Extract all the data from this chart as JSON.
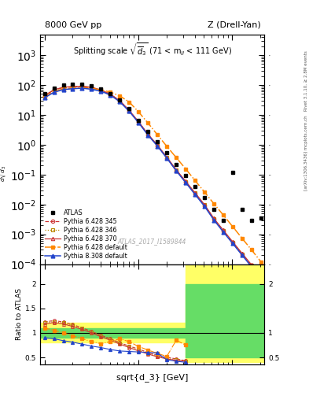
{
  "title_left": "8000 GeV pp",
  "title_right": "Z (Drell-Yan)",
  "plot_title": "Splitting scale $\\sqrt{\\overline{d}_3}$ (71 < m$_{ll}$ < 111 GeV)",
  "xlabel": "sqrt{d_3} [GeV]",
  "ylabel_main": "d$\\sigma$/dsqrt($\\overline{d_3}$) [pb,GeV$^{-1}$]",
  "ylabel_ratio": "Ratio to ATLAS",
  "watermark": "ATLAS_2017_I1589844",
  "right_label1": "Rivet 3.1.10, ≥ 2.8M events",
  "right_label2": "[arXiv:1306.3436]",
  "right_label3": "mcplots.cern.ch",
  "atlas_x": [
    1.0,
    1.26,
    1.59,
    2.0,
    2.52,
    3.17,
    4.0,
    5.04,
    6.35,
    8.0,
    10.08,
    12.7,
    16.0,
    20.16,
    25.4,
    32.0,
    40.32,
    50.79,
    64.0,
    80.64,
    101.59,
    128.0,
    161.28,
    203.19
  ],
  "atlas_y": [
    50,
    80,
    100,
    105,
    105,
    95,
    75,
    52,
    32,
    16,
    6.5,
    2.7,
    1.3,
    0.55,
    0.22,
    0.095,
    0.04,
    0.017,
    0.007,
    0.003,
    0.12,
    0.007,
    0.003,
    0.0035
  ],
  "py6_345_x": [
    1.0,
    1.26,
    1.59,
    2.0,
    2.52,
    3.17,
    4.0,
    5.04,
    6.35,
    8.0,
    10.08,
    12.7,
    16.0,
    20.16,
    25.4,
    32.0,
    40.32,
    50.79,
    64.0,
    80.64,
    101.59,
    128.0,
    161.28,
    203.19
  ],
  "py6_345_y": [
    43,
    68,
    82,
    87,
    89,
    82,
    66,
    48,
    29,
    13.5,
    5.6,
    2.15,
    0.92,
    0.36,
    0.135,
    0.056,
    0.023,
    0.0093,
    0.0032,
    0.0013,
    0.00052,
    0.00021,
    8.7e-05,
    3.4e-05
  ],
  "py6_346_x": [
    1.0,
    1.26,
    1.59,
    2.0,
    2.52,
    3.17,
    4.0,
    5.04,
    6.35,
    8.0,
    10.08,
    12.7,
    16.0,
    20.16,
    25.4,
    32.0,
    40.32,
    50.79,
    64.0,
    80.64,
    101.59,
    128.0,
    161.28,
    203.19
  ],
  "py6_346_y": [
    43,
    68,
    83,
    88,
    90,
    83,
    67,
    49,
    29.5,
    14,
    5.8,
    2.2,
    0.95,
    0.375,
    0.14,
    0.058,
    0.024,
    0.0097,
    0.0033,
    0.00133,
    0.00054,
    0.00022,
    9e-05,
    3.6e-05
  ],
  "py6_370_x": [
    1.0,
    1.26,
    1.59,
    2.0,
    2.52,
    3.17,
    4.0,
    5.04,
    6.35,
    8.0,
    10.08,
    12.7,
    16.0,
    20.16,
    25.4,
    32.0,
    40.32,
    50.79,
    64.0,
    80.64,
    101.59,
    128.0,
    161.28,
    203.19
  ],
  "py6_370_y": [
    44,
    69,
    84,
    89,
    91,
    84,
    68,
    49.5,
    30,
    14.2,
    5.9,
    2.27,
    0.97,
    0.385,
    0.145,
    0.06,
    0.0245,
    0.0099,
    0.0034,
    0.00137,
    0.00056,
    0.00023,
    9.5e-05,
    3.8e-05
  ],
  "py6_def_x": [
    1.0,
    1.26,
    1.59,
    2.0,
    2.52,
    3.17,
    4.0,
    5.04,
    6.35,
    8.0,
    10.08,
    12.7,
    16.0,
    20.16,
    25.4,
    32.0,
    40.32,
    50.79,
    64.0,
    80.64,
    101.59,
    128.0,
    161.28,
    203.19
  ],
  "py6_def_y": [
    40,
    60,
    74,
    79,
    82,
    77,
    68,
    58,
    43,
    27,
    12.5,
    5.3,
    2.15,
    0.88,
    0.37,
    0.155,
    0.063,
    0.026,
    0.0106,
    0.0044,
    0.0018,
    0.00073,
    0.0003,
    0.00012
  ],
  "py8_def_x": [
    1.0,
    1.26,
    1.59,
    2.0,
    2.52,
    3.17,
    4.0,
    5.04,
    6.35,
    8.0,
    10.08,
    12.7,
    16.0,
    20.16,
    25.4,
    32.0,
    40.32,
    50.79,
    64.0,
    80.64,
    101.59,
    128.0,
    161.28,
    203.19
  ],
  "py8_def_y": [
    37,
    57,
    70,
    75,
    78,
    72,
    62,
    46,
    27.5,
    13.2,
    5.4,
    2.1,
    0.9,
    0.355,
    0.133,
    0.054,
    0.0215,
    0.0087,
    0.003,
    0.0012,
    0.00049,
    0.0002,
    8.1e-05,
    3.2e-05
  ],
  "ratio_py6_345_x": [
    1.0,
    1.26,
    1.59,
    2.0,
    2.52,
    3.17,
    4.0,
    5.04,
    6.35,
    8.0,
    10.08,
    12.7,
    16.0,
    20.16,
    25.4,
    32.0
  ],
  "ratio_py6_345_y": [
    1.22,
    1.25,
    1.22,
    1.17,
    1.1,
    1.03,
    0.95,
    0.88,
    0.8,
    0.73,
    0.67,
    0.6,
    0.54,
    0.5,
    0.47,
    0.43
  ],
  "ratio_py6_346_x": [
    1.0,
    1.26,
    1.59,
    2.0,
    2.52,
    3.17,
    4.0,
    5.04,
    6.35,
    8.0,
    10.08,
    12.7,
    16.0,
    20.16,
    25.4,
    32.0
  ],
  "ratio_py6_346_y": [
    1.2,
    1.23,
    1.2,
    1.15,
    1.09,
    1.02,
    0.94,
    0.87,
    0.79,
    0.72,
    0.65,
    0.58,
    0.52,
    0.48,
    0.45,
    0.42
  ],
  "ratio_py6_370_x": [
    1.0,
    1.26,
    1.59,
    2.0,
    2.52,
    3.17,
    4.0,
    5.04,
    6.35,
    8.0,
    10.08,
    12.7,
    16.0,
    20.16,
    25.4,
    32.0
  ],
  "ratio_py6_370_y": [
    1.18,
    1.21,
    1.18,
    1.13,
    1.07,
    1.0,
    0.92,
    0.85,
    0.77,
    0.7,
    0.63,
    0.57,
    0.51,
    0.47,
    0.44,
    0.42
  ],
  "ratio_py6_def_x": [
    1.0,
    1.26,
    1.59,
    2.0,
    2.52,
    3.17,
    4.0,
    5.04,
    6.35,
    8.0,
    10.08,
    12.7,
    16.0,
    20.16,
    25.4,
    32.0
  ],
  "ratio_py6_def_y": [
    1.1,
    1.05,
    1.0,
    0.94,
    0.88,
    0.82,
    0.78,
    0.82,
    0.88,
    0.82,
    0.72,
    0.65,
    0.58,
    0.52,
    0.85,
    0.75
  ],
  "ratio_py8_def_x": [
    1.0,
    1.26,
    1.59,
    2.0,
    2.52,
    3.17,
    4.0,
    5.04,
    6.35,
    8.0,
    10.08,
    12.7,
    16.0,
    20.16,
    25.4,
    32.0
  ],
  "ratio_py8_def_y": [
    0.9,
    0.88,
    0.84,
    0.81,
    0.77,
    0.73,
    0.7,
    0.66,
    0.63,
    0.62,
    0.61,
    0.6,
    0.59,
    0.45,
    0.42,
    0.4
  ],
  "color_atlas": "#000000",
  "color_py6_345": "#cc3333",
  "color_py6_346": "#bb8800",
  "color_py6_370": "#cc3333",
  "color_py6_def": "#ff8800",
  "color_py8_def": "#2244cc",
  "ylim_main": [
    0.0001,
    5000
  ],
  "ylim_ratio": [
    0.35,
    2.4
  ],
  "xlim": [
    0.9,
    220
  ]
}
